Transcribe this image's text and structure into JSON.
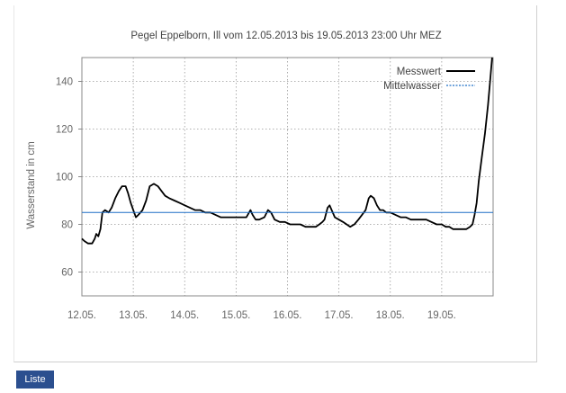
{
  "chart_data": {
    "type": "line",
    "title": "Pegel Eppelborn, Ill vom 12.05.2013 bis 19.05.2013 23:00 Uhr MEZ",
    "ylabel": "Wasserstand in cm",
    "xlabel": "",
    "ylim": [
      50,
      150
    ],
    "xlim": [
      0,
      8
    ],
    "x_ticks": [
      {
        "value": 0,
        "label": "12.05."
      },
      {
        "value": 1,
        "label": "13.05."
      },
      {
        "value": 2,
        "label": "14.05."
      },
      {
        "value": 3,
        "label": "15.05."
      },
      {
        "value": 4,
        "label": "16.05."
      },
      {
        "value": 5,
        "label": "17.05."
      },
      {
        "value": 6,
        "label": "18.05."
      },
      {
        "value": 7,
        "label": "19.05."
      }
    ],
    "y_ticks": [
      60,
      80,
      100,
      120,
      140
    ],
    "grid": true,
    "legend_position": "top-right",
    "series": [
      {
        "name": "Messwert",
        "color": "#000000",
        "points": [
          [
            0.0,
            74
          ],
          [
            0.05,
            73
          ],
          [
            0.12,
            72
          ],
          [
            0.2,
            72
          ],
          [
            0.25,
            74
          ],
          [
            0.28,
            76
          ],
          [
            0.32,
            75
          ],
          [
            0.36,
            78
          ],
          [
            0.4,
            85
          ],
          [
            0.45,
            86
          ],
          [
            0.52,
            85
          ],
          [
            0.58,
            87
          ],
          [
            0.65,
            91
          ],
          [
            0.72,
            94
          ],
          [
            0.78,
            96
          ],
          [
            0.85,
            96
          ],
          [
            0.9,
            93
          ],
          [
            0.95,
            89
          ],
          [
            1.0,
            86
          ],
          [
            1.05,
            83
          ],
          [
            1.1,
            84
          ],
          [
            1.18,
            86
          ],
          [
            1.25,
            90
          ],
          [
            1.32,
            96
          ],
          [
            1.4,
            97
          ],
          [
            1.48,
            96
          ],
          [
            1.55,
            94
          ],
          [
            1.62,
            92
          ],
          [
            1.7,
            91
          ],
          [
            1.8,
            90
          ],
          [
            1.9,
            89
          ],
          [
            2.0,
            88
          ],
          [
            2.1,
            87
          ],
          [
            2.2,
            86
          ],
          [
            2.3,
            86
          ],
          [
            2.4,
            85
          ],
          [
            2.5,
            85
          ],
          [
            2.6,
            84
          ],
          [
            2.7,
            83
          ],
          [
            2.8,
            83
          ],
          [
            2.9,
            83
          ],
          [
            3.0,
            83
          ],
          [
            3.1,
            83
          ],
          [
            3.2,
            83
          ],
          [
            3.28,
            86
          ],
          [
            3.32,
            84
          ],
          [
            3.38,
            82
          ],
          [
            3.45,
            82
          ],
          [
            3.55,
            83
          ],
          [
            3.62,
            86
          ],
          [
            3.68,
            85
          ],
          [
            3.75,
            82
          ],
          [
            3.85,
            81
          ],
          [
            3.95,
            81
          ],
          [
            4.05,
            80
          ],
          [
            4.15,
            80
          ],
          [
            4.25,
            80
          ],
          [
            4.35,
            79
          ],
          [
            4.45,
            79
          ],
          [
            4.55,
            79
          ],
          [
            4.62,
            80
          ],
          [
            4.68,
            81
          ],
          [
            4.72,
            82
          ],
          [
            4.78,
            87
          ],
          [
            4.82,
            88
          ],
          [
            4.86,
            86
          ],
          [
            4.92,
            83
          ],
          [
            5.0,
            82
          ],
          [
            5.08,
            81
          ],
          [
            5.15,
            80
          ],
          [
            5.22,
            79
          ],
          [
            5.3,
            80
          ],
          [
            5.38,
            82
          ],
          [
            5.45,
            84
          ],
          [
            5.52,
            86
          ],
          [
            5.58,
            91
          ],
          [
            5.62,
            92
          ],
          [
            5.68,
            91
          ],
          [
            5.74,
            88
          ],
          [
            5.8,
            86
          ],
          [
            5.86,
            86
          ],
          [
            5.92,
            85
          ],
          [
            6.0,
            85
          ],
          [
            6.1,
            84
          ],
          [
            6.2,
            83
          ],
          [
            6.3,
            83
          ],
          [
            6.4,
            82
          ],
          [
            6.5,
            82
          ],
          [
            6.6,
            82
          ],
          [
            6.7,
            82
          ],
          [
            6.8,
            81
          ],
          [
            6.9,
            80
          ],
          [
            7.0,
            80
          ],
          [
            7.08,
            79
          ],
          [
            7.15,
            79
          ],
          [
            7.22,
            78
          ],
          [
            7.3,
            78
          ],
          [
            7.4,
            78
          ],
          [
            7.48,
            78
          ],
          [
            7.55,
            79
          ],
          [
            7.6,
            80
          ],
          [
            7.64,
            84
          ],
          [
            7.68,
            89
          ],
          [
            7.72,
            98
          ],
          [
            7.78,
            108
          ],
          [
            7.84,
            118
          ],
          [
            7.9,
            130
          ],
          [
            7.95,
            142
          ],
          [
            7.98,
            150
          ]
        ]
      },
      {
        "name": "Mittelwasser",
        "color": "#1f6fc6",
        "points": [
          [
            0,
            85
          ],
          [
            8,
            85
          ]
        ]
      }
    ]
  },
  "controls": {
    "liste_button": "Liste"
  }
}
